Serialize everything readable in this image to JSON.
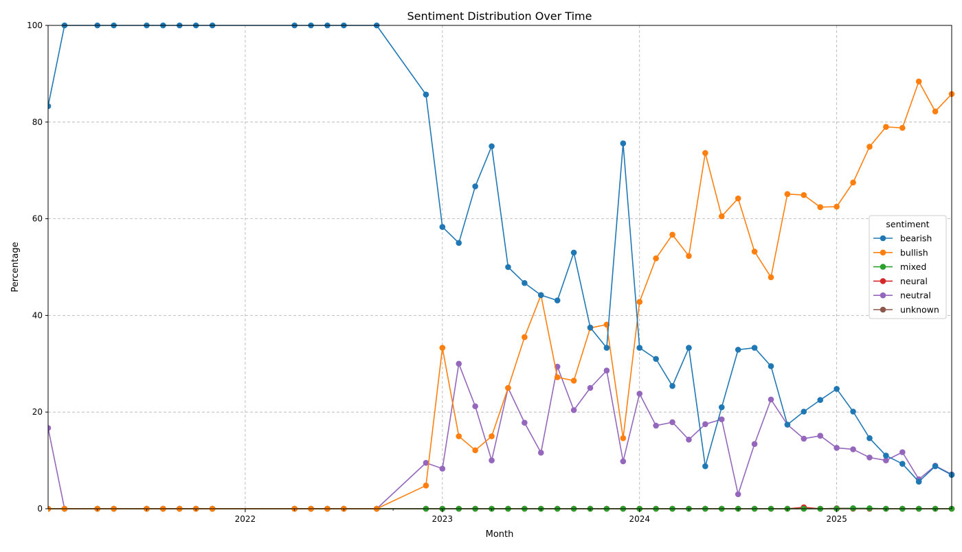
{
  "chart_data": {
    "type": "line",
    "title": "Sentiment Distribution Over Time",
    "xlabel": "Month",
    "ylabel": "Percentage",
    "ylim": [
      0,
      100
    ],
    "xlim": [
      "2021-01",
      "2025-08"
    ],
    "yticks": [
      0,
      20,
      40,
      60,
      80,
      100
    ],
    "xtick_labels": [
      {
        "month": "2022-01",
        "label": "2022"
      },
      {
        "month": "2023-01",
        "label": "2023"
      },
      {
        "month": "2024-01",
        "label": "2024"
      },
      {
        "month": "2025-01",
        "label": "2025"
      }
    ],
    "grid": true,
    "legend": {
      "title": "sentiment",
      "placement": "center-right"
    },
    "series": [
      {
        "name": "bearish",
        "color": "#1f77b4",
        "x": [
          "2021-01",
          "2021-02",
          "2021-04",
          "2021-05",
          "2021-07",
          "2021-08",
          "2021-09",
          "2021-10",
          "2021-11",
          "2022-04",
          "2022-05",
          "2022-06",
          "2022-07",
          "2022-09",
          "2022-12",
          "2023-01",
          "2023-02",
          "2023-03",
          "2023-04",
          "2023-05",
          "2023-06",
          "2023-07",
          "2023-08",
          "2023-09",
          "2023-10",
          "2023-11",
          "2023-12",
          "2024-01",
          "2024-02",
          "2024-03",
          "2024-04",
          "2024-05",
          "2024-06",
          "2024-07",
          "2024-08",
          "2024-09",
          "2024-10",
          "2024-11",
          "2024-12",
          "2025-01",
          "2025-02",
          "2025-03",
          "2025-04",
          "2025-05",
          "2025-06",
          "2025-07",
          "2025-08"
        ],
        "y": [
          83.3,
          100,
          100,
          100,
          100,
          100,
          100,
          100,
          100,
          100,
          100,
          100,
          100,
          100,
          85.7,
          58.3,
          55,
          66.7,
          75,
          50,
          46.7,
          44.2,
          43.1,
          53,
          37.5,
          33.3,
          75.6,
          33.3,
          31,
          25.4,
          33.3,
          8.8,
          21,
          32.9,
          33.3,
          29.5,
          17.4,
          20.1,
          22.5,
          24.8,
          20.1,
          14.6,
          11,
          9.3,
          5.6,
          8.8,
          7
        ]
      },
      {
        "name": "bullish",
        "color": "#ff7f0e",
        "x": [
          "2021-01",
          "2021-02",
          "2021-04",
          "2021-05",
          "2021-07",
          "2021-08",
          "2021-09",
          "2021-10",
          "2021-11",
          "2022-04",
          "2022-05",
          "2022-06",
          "2022-07",
          "2022-09",
          "2022-12",
          "2023-01",
          "2023-02",
          "2023-03",
          "2023-04",
          "2023-05",
          "2023-06",
          "2023-07",
          "2023-08",
          "2023-09",
          "2023-10",
          "2023-11",
          "2023-12",
          "2024-01",
          "2024-02",
          "2024-03",
          "2024-04",
          "2024-05",
          "2024-06",
          "2024-07",
          "2024-08",
          "2024-09",
          "2024-10",
          "2024-11",
          "2024-12",
          "2025-01",
          "2025-02",
          "2025-03",
          "2025-04",
          "2025-05",
          "2025-06",
          "2025-07",
          "2025-08"
        ],
        "y": [
          0,
          0,
          0,
          0,
          0,
          0,
          0,
          0,
          0,
          0,
          0,
          0,
          0,
          0,
          4.8,
          33.3,
          15,
          12.1,
          15,
          25,
          35.5,
          44.2,
          27.2,
          26.5,
          37.4,
          38.1,
          14.6,
          42.8,
          51.8,
          56.7,
          52.3,
          73.6,
          60.5,
          64.2,
          53.2,
          47.9,
          65.1,
          64.9,
          62.4,
          62.5,
          67.5,
          74.9,
          79,
          78.8,
          88.4,
          82.2,
          85.8
        ]
      },
      {
        "name": "mixed",
        "color": "#2ca02c",
        "x": [
          "2021-01",
          "2021-02",
          "2021-04",
          "2021-05",
          "2021-07",
          "2021-08",
          "2021-09",
          "2021-10",
          "2021-11",
          "2022-04",
          "2022-05",
          "2022-06",
          "2022-07",
          "2022-09",
          "2022-12",
          "2023-01",
          "2023-02",
          "2023-03",
          "2023-04",
          "2023-05",
          "2023-06",
          "2023-07",
          "2023-08",
          "2023-09",
          "2023-10",
          "2023-11",
          "2023-12",
          "2024-01",
          "2024-02",
          "2024-03",
          "2024-04",
          "2024-05",
          "2024-06",
          "2024-07",
          "2024-08",
          "2024-09",
          "2024-10",
          "2024-11",
          "2024-12",
          "2025-01",
          "2025-02",
          "2025-03",
          "2025-04",
          "2025-05",
          "2025-06",
          "2025-07",
          "2025-08"
        ],
        "y": [
          0,
          0,
          0,
          0,
          0,
          0,
          0,
          0,
          0,
          0,
          0,
          0,
          0,
          0,
          0,
          0,
          0,
          0,
          0,
          0,
          0,
          0,
          0,
          0,
          0,
          0,
          0,
          0,
          0,
          0,
          0,
          0,
          0,
          0,
          0,
          0,
          0,
          0,
          0,
          0,
          0.1,
          0.1,
          0,
          0,
          0,
          0,
          0
        ]
      },
      {
        "name": "neural",
        "color": "#d62728",
        "x": [
          "2021-01",
          "2021-02",
          "2021-04",
          "2021-05",
          "2021-07",
          "2021-08",
          "2021-09",
          "2021-10",
          "2021-11",
          "2022-04",
          "2022-05",
          "2022-06",
          "2022-07",
          "2022-09",
          "2022-12",
          "2023-01",
          "2023-02",
          "2023-03",
          "2023-04",
          "2023-05",
          "2023-06",
          "2023-07",
          "2023-08",
          "2023-09",
          "2023-10",
          "2023-11",
          "2023-12",
          "2024-01",
          "2024-02",
          "2024-03",
          "2024-04",
          "2024-05",
          "2024-06",
          "2024-07",
          "2024-08",
          "2024-09",
          "2024-10",
          "2024-11",
          "2024-12",
          "2025-01",
          "2025-02",
          "2025-03",
          "2025-04",
          "2025-05",
          "2025-06",
          "2025-07",
          "2025-08"
        ],
        "y": [
          0,
          0,
          0,
          0,
          0,
          0,
          0,
          0,
          0,
          0,
          0,
          0,
          0,
          0,
          0,
          0,
          0,
          0,
          0,
          0,
          0,
          0,
          0,
          0,
          0,
          0,
          0,
          0,
          0,
          0,
          0,
          0,
          0,
          0,
          0,
          0,
          0,
          0.3,
          0,
          0,
          0,
          0,
          0,
          0,
          0,
          0,
          0
        ]
      },
      {
        "name": "neutral",
        "color": "#9467bd",
        "x": [
          "2021-01",
          "2021-02",
          "2021-04",
          "2021-05",
          "2021-07",
          "2021-08",
          "2021-09",
          "2021-10",
          "2021-11",
          "2022-04",
          "2022-05",
          "2022-06",
          "2022-07",
          "2022-09",
          "2022-12",
          "2023-01",
          "2023-02",
          "2023-03",
          "2023-04",
          "2023-05",
          "2023-06",
          "2023-07",
          "2023-08",
          "2023-09",
          "2023-10",
          "2023-11",
          "2023-12",
          "2024-01",
          "2024-02",
          "2024-03",
          "2024-04",
          "2024-05",
          "2024-06",
          "2024-07",
          "2024-08",
          "2024-09",
          "2024-10",
          "2024-11",
          "2024-12",
          "2025-01",
          "2025-02",
          "2025-03",
          "2025-04",
          "2025-05",
          "2025-06",
          "2025-07",
          "2025-08"
        ],
        "y": [
          16.7,
          0,
          0,
          0,
          0,
          0,
          0,
          0,
          0,
          0,
          0,
          0,
          0,
          0,
          9.5,
          8.3,
          30,
          21.2,
          10,
          25,
          17.8,
          11.6,
          29.4,
          20.4,
          25,
          28.6,
          9.8,
          23.8,
          17.2,
          17.9,
          14.3,
          17.5,
          18.5,
          3,
          13.4,
          22.6,
          17.4,
          14.5,
          15.1,
          12.6,
          12.3,
          10.6,
          10,
          11.7,
          6.1,
          8.9,
          7.1
        ]
      },
      {
        "name": "unknown",
        "color": "#8c564b",
        "x": [
          "2021-01",
          "2021-02",
          "2021-04",
          "2021-05",
          "2021-07",
          "2021-08",
          "2021-09",
          "2021-10",
          "2021-11",
          "2022-04",
          "2022-05",
          "2022-06",
          "2022-07",
          "2022-09",
          "2022-12",
          "2023-01",
          "2023-02",
          "2023-03",
          "2023-04",
          "2023-05",
          "2023-06",
          "2023-07",
          "2023-08",
          "2023-09",
          "2023-10",
          "2023-11",
          "2023-12",
          "2024-01",
          "2024-02",
          "2024-03",
          "2024-04",
          "2024-05",
          "2024-06",
          "2024-07",
          "2024-08",
          "2024-09",
          "2024-10",
          "2024-11",
          "2024-12",
          "2025-01",
          "2025-02",
          "2025-03",
          "2025-04",
          "2025-05",
          "2025-06",
          "2025-07",
          "2025-08"
        ],
        "y": [
          0,
          0,
          0,
          0,
          0,
          0,
          0,
          0,
          0,
          0,
          0,
          0,
          0,
          0,
          0,
          0,
          0,
          0,
          0,
          0,
          0,
          0,
          0,
          0,
          0,
          0,
          0,
          0,
          0,
          0,
          0,
          0,
          0,
          0,
          0,
          0,
          0,
          0,
          0,
          0.1,
          0.1,
          0,
          0,
          0,
          0,
          0,
          0
        ]
      }
    ]
  }
}
